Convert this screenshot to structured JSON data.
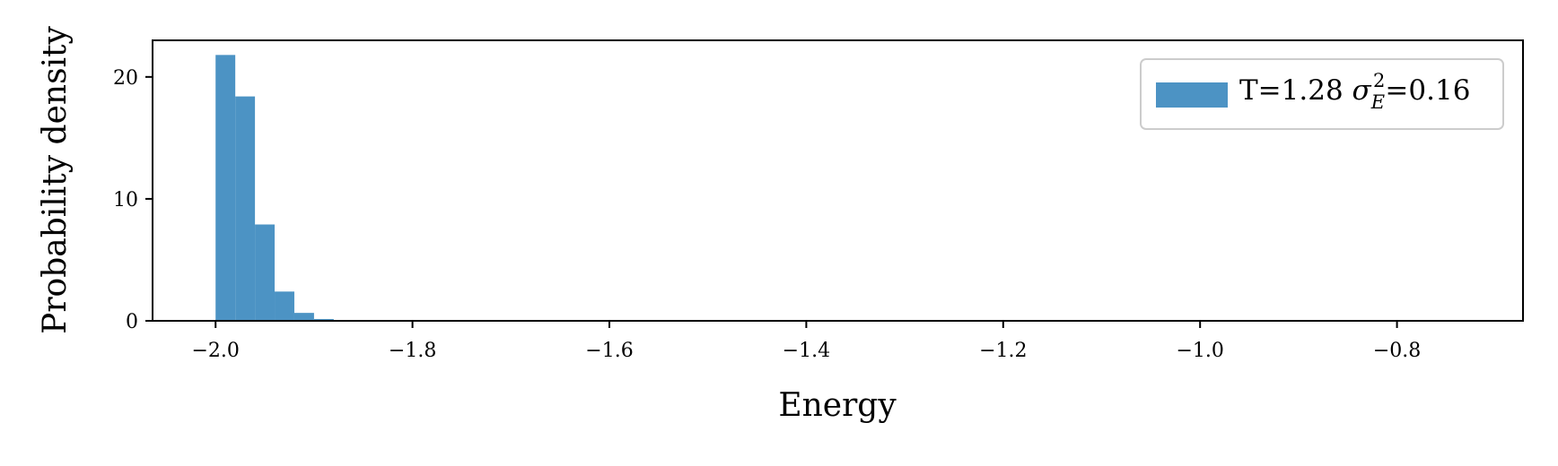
{
  "chart_data": {
    "type": "bar",
    "subtype": "histogram",
    "xlabel": "Energy",
    "ylabel": "Probability density",
    "xlim": [
      -2.064,
      -0.672
    ],
    "ylim": [
      0,
      23
    ],
    "xticks": [
      -2.0,
      -1.8,
      -1.6,
      -1.4,
      -1.2,
      -1.0,
      -0.8
    ],
    "xtick_labels": [
      "−2.0",
      "−1.8",
      "−1.6",
      "−1.4",
      "−1.2",
      "−1.0",
      "−0.8"
    ],
    "yticks": [
      0,
      10,
      20
    ],
    "ytick_labels": [
      "0",
      "10",
      "20"
    ],
    "bin_width": 0.02,
    "bin_starts": [
      -2.0,
      -1.98,
      -1.96,
      -1.94,
      -1.92,
      -1.9,
      -1.88,
      -1.86
    ],
    "values": [
      21.8,
      18.4,
      7.9,
      2.4,
      0.65,
      0.15,
      0.04,
      0.01
    ],
    "color": "#4c93c4",
    "legend": {
      "placement": "upper right",
      "label_prefix": "T=1.28 ",
      "sigma": "σ",
      "subscript": "E",
      "superscript": "2",
      "label_suffix": "=0.16"
    },
    "grid": false
  }
}
